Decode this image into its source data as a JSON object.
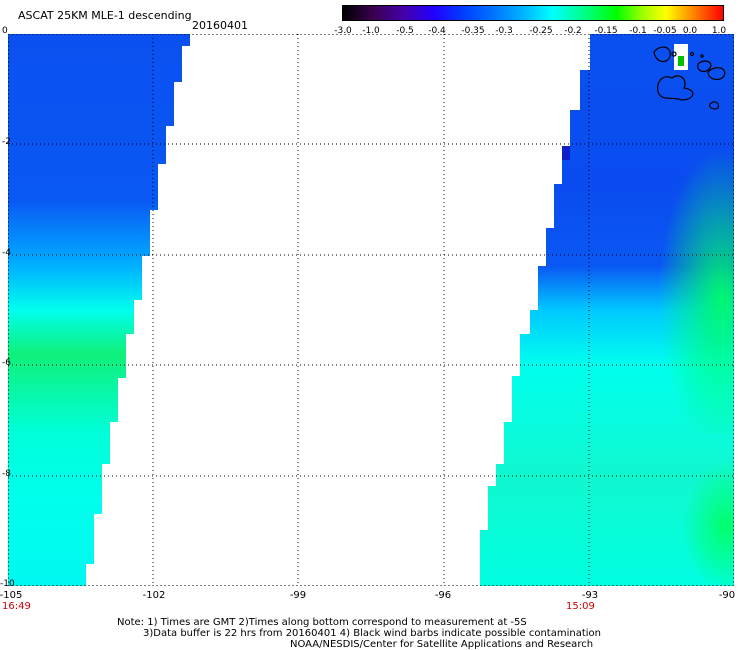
{
  "header": {
    "title": "ASCAT 25KM MLE-1 descending",
    "date": "20160401"
  },
  "colorbar": {
    "ticks": [
      "-3.0",
      "-1.0",
      "-0.5",
      "-0.4",
      "-0.35",
      "-0.3",
      "-0.25",
      "-0.2",
      "-0.15",
      "-0.1",
      "-0.05",
      "0.0",
      "1.0"
    ]
  },
  "map": {
    "y_ticks": [
      "0",
      "-2",
      "-4",
      "-6",
      "-8",
      "-10"
    ],
    "x_ticks": [
      "-105",
      "-102",
      "-99",
      "-96",
      "-93",
      "-90"
    ],
    "time_labels": [
      "16:49",
      "15:09"
    ],
    "colors": {
      "swath_blue": "#0a50f0",
      "swath_cyan": "#00ffee",
      "swath_green": "#10f070",
      "grid": "#000000"
    }
  },
  "notes": {
    "line1": "Note: 1) Times are GMT 2)Times along bottom correspond to measurement at -5S",
    "line2": "3)Data buffer is 22 hrs from 20160401 4) Black wind barbs indicate possible contamination",
    "line3": "NOAA/NESDIS/Center for Satellite Applications and Research"
  }
}
